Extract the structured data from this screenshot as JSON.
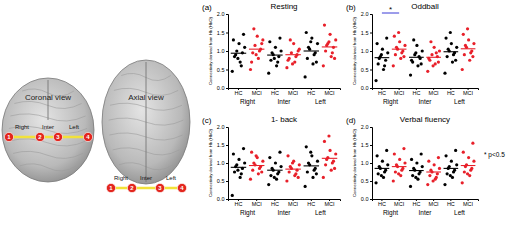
{
  "diagram": {
    "views": [
      {
        "title": "Coronal view",
        "regions": [
          "Right",
          "Inter",
          "Left"
        ],
        "channels": [
          "1",
          "2",
          "3",
          "4"
        ]
      },
      {
        "title": "Axial view",
        "regions": [
          "Right",
          "Inter",
          "Left"
        ],
        "channels": [
          "1",
          "2",
          "3",
          "4"
        ]
      }
    ]
  },
  "note": "* p<0.5",
  "chart_data": [
    {
      "type": "scatter",
      "title": "Resting",
      "annotations": [
        "(a)"
      ],
      "y_label": "Connectivity derived from Hb (HbO)",
      "categories": [
        "HC",
        "MCI",
        "HC",
        "MCI",
        "HC",
        "MCI"
      ],
      "groups": [
        "Right",
        "Inter",
        "Left"
      ],
      "colors": [
        "#000000",
        "#e8202a",
        "#000000",
        "#e8202a",
        "#000000",
        "#e8202a"
      ],
      "values": [
        [
          0.45,
          0.7,
          0.85,
          0.95,
          1.0,
          1.1,
          1.2,
          1.3,
          0.6,
          0.9,
          1.45,
          0.8
        ],
        [
          0.5,
          0.8,
          0.95,
          1.05,
          1.15,
          1.3,
          1.4,
          0.7,
          1.0,
          1.6,
          1.2,
          0.9
        ],
        [
          0.4,
          0.6,
          0.75,
          0.85,
          0.9,
          1.0,
          1.1,
          1.25,
          0.7,
          0.95,
          1.35,
          0.8
        ],
        [
          0.55,
          0.7,
          0.8,
          0.9,
          0.95,
          1.05,
          1.2,
          0.75,
          0.85,
          1.3,
          1.0,
          0.65
        ],
        [
          0.3,
          0.65,
          0.8,
          0.95,
          1.05,
          1.2,
          1.35,
          1.5,
          0.9,
          1.1,
          0.7,
          1.25
        ],
        [
          0.6,
          0.85,
          1.0,
          1.1,
          1.2,
          1.3,
          1.45,
          1.7,
          0.95,
          1.15,
          0.8,
          1.25
        ]
      ],
      "means": [
        0.94,
        1.05,
        0.89,
        0.9,
        1.0,
        1.11
      ],
      "ylim": [
        0,
        2
      ],
      "yticks": [
        {
          "value": 0,
          "label": "0.0"
        },
        0.5,
        {
          "value": 1,
          "label": "1.0"
        },
        1.5,
        {
          "value": 2,
          "label": "2.0"
        }
      ]
    },
    {
      "type": "scatter",
      "title": "Oddball",
      "annotations": [
        "(b)"
      ],
      "y_label": "Connectivity derived from Hb (HbO)",
      "categories": [
        "HC",
        "MCI",
        "HC",
        "MCI",
        "HC",
        "MCI"
      ],
      "groups": [
        "Right",
        "Inter",
        "Left"
      ],
      "colors": [
        "#000000",
        "#e8202a",
        "#000000",
        "#e8202a",
        "#000000",
        "#e8202a"
      ],
      "values": [
        [
          0.2,
          0.5,
          0.65,
          0.75,
          0.85,
          0.95,
          1.05,
          1.2,
          0.6,
          0.8,
          1.35,
          0.9
        ],
        [
          0.6,
          0.8,
          0.9,
          1.0,
          1.05,
          1.15,
          1.25,
          1.4,
          0.95,
          1.1,
          0.85,
          1.5
        ],
        [
          0.35,
          0.6,
          0.7,
          0.8,
          0.9,
          1.0,
          1.15,
          0.75,
          0.85,
          1.3,
          0.65,
          0.95
        ],
        [
          0.45,
          0.65,
          0.75,
          0.85,
          0.9,
          1.0,
          1.1,
          0.8,
          0.95,
          1.25,
          0.7,
          0.6
        ],
        [
          0.4,
          0.7,
          0.85,
          0.95,
          1.0,
          1.1,
          1.2,
          1.35,
          0.9,
          1.05,
          0.75,
          1.5
        ],
        [
          0.5,
          0.75,
          0.9,
          1.0,
          1.1,
          1.2,
          1.3,
          1.45,
          0.95,
          1.15,
          0.85,
          1.6
        ]
      ],
      "means": [
        0.82,
        1.05,
        0.83,
        0.83,
        0.98,
        1.06
      ],
      "significance": [
        {
          "label": "*",
          "between": [
            0,
            1
          ]
        }
      ],
      "ylim": [
        0,
        2
      ],
      "yticks": [
        {
          "value": 0,
          "label": "0.0"
        },
        0.5,
        {
          "value": 1,
          "label": "1.0"
        },
        1.5,
        {
          "value": 2,
          "label": "2.0"
        }
      ]
    },
    {
      "type": "scatter",
      "title": "1- back",
      "annotations": [
        "(c)"
      ],
      "y_label": "Connectivity derived from Hb (HbO)",
      "categories": [
        "HC",
        "MCI",
        "HC",
        "MCI",
        "HC",
        "MCI"
      ],
      "groups": [
        "Right",
        "Inter",
        "Left"
      ],
      "colors": [
        "#000000",
        "#e8202a",
        "#000000",
        "#e8202a",
        "#000000",
        "#e8202a"
      ],
      "values": [
        [
          0.1,
          0.6,
          0.75,
          0.85,
          0.95,
          1.0,
          1.1,
          1.25,
          0.7,
          0.9,
          1.4,
          0.8
        ],
        [
          0.55,
          0.7,
          0.8,
          0.9,
          0.95,
          1.05,
          1.15,
          1.3,
          0.85,
          1.0,
          0.75,
          1.2
        ],
        [
          0.4,
          0.55,
          0.65,
          0.75,
          0.8,
          0.9,
          1.0,
          1.15,
          0.7,
          0.85,
          1.3,
          0.6
        ],
        [
          0.5,
          0.65,
          0.75,
          0.8,
          0.85,
          0.95,
          1.05,
          1.2,
          0.7,
          0.9,
          0.6,
          1.0
        ],
        [
          0.35,
          0.6,
          0.75,
          0.85,
          0.95,
          1.05,
          1.2,
          1.45,
          0.8,
          1.0,
          0.7,
          1.3
        ],
        [
          0.6,
          0.8,
          0.95,
          1.05,
          1.15,
          1.25,
          1.35,
          1.6,
          1.0,
          1.1,
          0.85,
          1.75
        ]
      ],
      "means": [
        0.88,
        0.93,
        0.8,
        0.83,
        0.92,
        1.13
      ],
      "ylim": [
        0,
        2
      ],
      "yticks": [
        {
          "value": 0,
          "label": "0.0"
        },
        0.5,
        {
          "value": 1,
          "label": "1.0"
        },
        1.5,
        {
          "value": 2,
          "label": "2.0"
        }
      ]
    },
    {
      "type": "scatter",
      "title": "Verbal fluency",
      "annotations": [
        "(d)"
      ],
      "y_label": "Connectivity derived from Hb (HbO)",
      "categories": [
        "HC",
        "MCI",
        "HC",
        "MCI",
        "HC",
        "MCI"
      ],
      "groups": [
        "Right",
        "Inter",
        "Left"
      ],
      "colors": [
        "#000000",
        "#e8202a",
        "#000000",
        "#e8202a",
        "#000000",
        "#e8202a"
      ],
      "values": [
        [
          0.45,
          0.6,
          0.7,
          0.8,
          0.85,
          0.95,
          1.05,
          1.2,
          0.75,
          0.9,
          1.35,
          0.65
        ],
        [
          0.5,
          0.65,
          0.75,
          0.85,
          0.9,
          1.0,
          1.1,
          1.25,
          0.8,
          0.95,
          1.4,
          0.7
        ],
        [
          0.35,
          0.55,
          0.65,
          0.75,
          0.8,
          0.9,
          1.0,
          1.1,
          0.7,
          0.85,
          1.25,
          0.6
        ],
        [
          0.4,
          0.55,
          0.65,
          0.7,
          0.75,
          0.85,
          0.95,
          1.05,
          0.6,
          0.8,
          1.15,
          0.5
        ],
        [
          0.4,
          0.6,
          0.7,
          0.8,
          0.9,
          0.95,
          1.05,
          1.2,
          0.75,
          0.85,
          1.35,
          0.65
        ],
        [
          0.45,
          0.65,
          0.75,
          0.85,
          0.95,
          1.05,
          1.15,
          1.3,
          0.8,
          0.9,
          1.55,
          0.7
        ]
      ],
      "means": [
        0.85,
        0.9,
        0.79,
        0.75,
        0.85,
        0.93
      ],
      "ylim": [
        0,
        2
      ],
      "yticks": [
        {
          "value": 0,
          "label": "0.0"
        },
        0.5,
        {
          "value": 1,
          "label": "1.0"
        },
        1.5,
        {
          "value": 2,
          "label": "2.0"
        }
      ]
    }
  ]
}
